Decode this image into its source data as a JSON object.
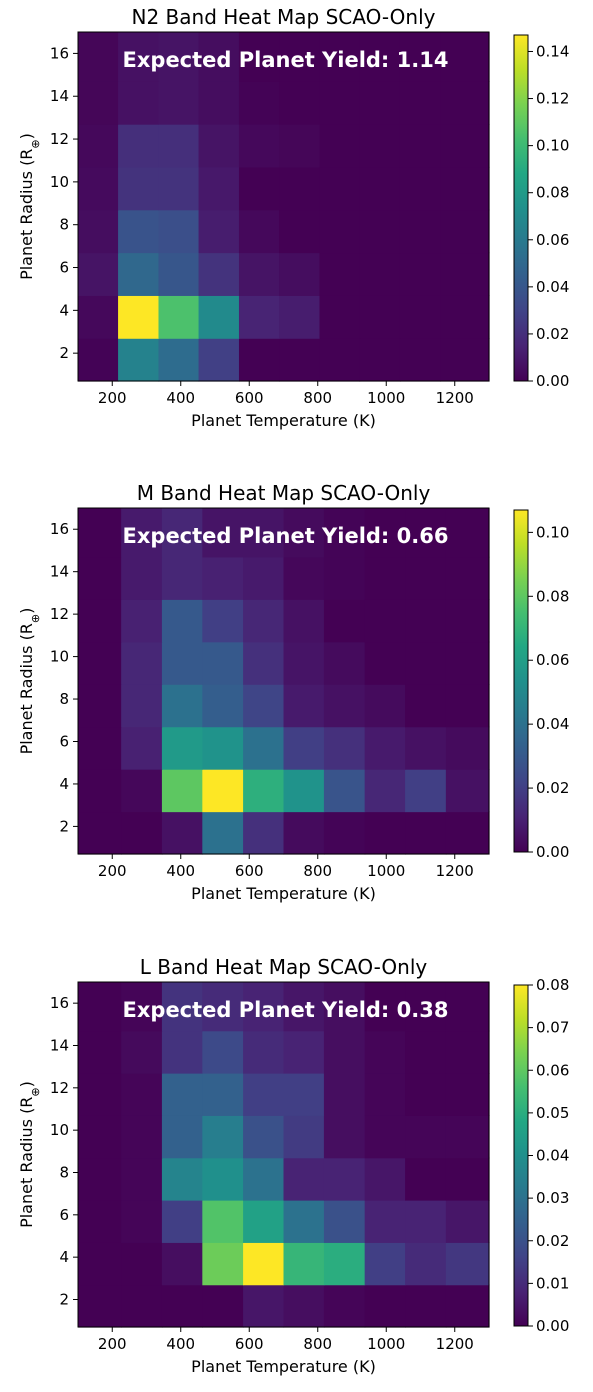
{
  "chart_data": [
    {
      "type": "heatmap",
      "title": "N2 Band Heat Map SCAO-Only",
      "xlabel": "Planet Temperature (K)",
      "ylabel": "Planet Radius (R",
      "ylabel_subscript": "⊕",
      "ylabel_close": ")",
      "annotation": "Expected Planet Yield: 1.14",
      "xlim": [
        100,
        1300
      ],
      "ylim": [
        0.7,
        17
      ],
      "x_ticks": [
        200,
        400,
        600,
        800,
        1000,
        1200
      ],
      "x_tick_labels": [
        "200",
        "400",
        "600",
        "800",
        "1000",
        "1200"
      ],
      "y_ticks": [
        2,
        4,
        6,
        8,
        10,
        12,
        14,
        16
      ],
      "y_tick_labels": [
        "2",
        "4",
        "6",
        "8",
        "10",
        "12",
        "14",
        "16"
      ],
      "colorbar": {
        "vmin": 0,
        "vmax": 0.147,
        "ticks": [
          0,
          0.02,
          0.04,
          0.06,
          0.08,
          0.1,
          0.12,
          0.14
        ],
        "tick_labels": [
          "0.00",
          "0.02",
          "0.04",
          "0.06",
          "0.08",
          "0.10",
          "0.12",
          "0.14"
        ]
      },
      "x_edges": [
        100,
        217,
        335,
        452,
        570,
        687,
        805,
        922,
        1040,
        1157,
        1300
      ],
      "y_edges": [
        0.7,
        2.7,
        4.7,
        6.7,
        8.7,
        10.7,
        12.7,
        14.7,
        17
      ],
      "z": [
        [
          0.001,
          0.065,
          0.052,
          0.028,
          0.0,
          0.0,
          0.0,
          0.0,
          0.0,
          0.0
        ],
        [
          0.003,
          0.147,
          0.105,
          0.07,
          0.015,
          0.012,
          0.0,
          0.0,
          0.0,
          0.0
        ],
        [
          0.008,
          0.05,
          0.04,
          0.022,
          0.008,
          0.005,
          0.0,
          0.0,
          0.0,
          0.0
        ],
        [
          0.005,
          0.038,
          0.036,
          0.012,
          0.003,
          0.0,
          0.0,
          0.0,
          0.0,
          0.0
        ],
        [
          0.004,
          0.022,
          0.022,
          0.01,
          0.0,
          0.0,
          0.0,
          0.0,
          0.0,
          0.0
        ],
        [
          0.003,
          0.02,
          0.02,
          0.008,
          0.003,
          0.002,
          0.0,
          0.0,
          0.0,
          0.0
        ],
        [
          0.002,
          0.007,
          0.008,
          0.005,
          0.001,
          0.0,
          0.0,
          0.0,
          0.0,
          0.0
        ],
        [
          0.002,
          0.007,
          0.008,
          0.005,
          0.0,
          0.0,
          0.0,
          0.0,
          0.0,
          0.0
        ]
      ]
    },
    {
      "type": "heatmap",
      "title": "M Band Heat Map SCAO-Only",
      "xlabel": "Planet Temperature (K)",
      "ylabel": "Planet Radius (R",
      "ylabel_subscript": "⊕",
      "ylabel_close": ")",
      "annotation": "Expected Planet Yield: 0.66",
      "xlim": [
        100,
        1300
      ],
      "ylim": [
        0.7,
        17
      ],
      "x_ticks": [
        200,
        400,
        600,
        800,
        1000,
        1200
      ],
      "x_tick_labels": [
        "200",
        "400",
        "600",
        "800",
        "1000",
        "1200"
      ],
      "y_ticks": [
        2,
        4,
        6,
        8,
        10,
        12,
        14,
        16
      ],
      "y_tick_labels": [
        "2",
        "4",
        "6",
        "8",
        "10",
        "12",
        "14",
        "16"
      ],
      "colorbar": {
        "vmin": 0,
        "vmax": 0.107,
        "ticks": [
          0,
          0.02,
          0.04,
          0.06,
          0.08,
          0.1
        ],
        "tick_labels": [
          "0.00",
          "0.02",
          "0.04",
          "0.06",
          "0.08",
          "0.10"
        ]
      },
      "x_edges": [
        100,
        226,
        345,
        463,
        582,
        700,
        818,
        937,
        1055,
        1174,
        1300
      ],
      "y_edges": [
        0.7,
        2.7,
        4.7,
        6.7,
        8.7,
        10.7,
        12.7,
        14.7,
        17
      ],
      "z": [
        [
          0.0,
          0.0,
          0.005,
          0.04,
          0.015,
          0.003,
          0.001,
          0.0,
          0.0,
          0.0
        ],
        [
          0.0,
          0.002,
          0.08,
          0.107,
          0.068,
          0.055,
          0.028,
          0.012,
          0.02,
          0.005
        ],
        [
          0.0,
          0.01,
          0.058,
          0.055,
          0.04,
          0.02,
          0.015,
          0.008,
          0.005,
          0.003
        ],
        [
          0.0,
          0.012,
          0.04,
          0.032,
          0.022,
          0.008,
          0.005,
          0.003,
          0.0,
          0.0
        ],
        [
          0.0,
          0.012,
          0.03,
          0.03,
          0.015,
          0.006,
          0.003,
          0.0,
          0.0,
          0.0
        ],
        [
          0.0,
          0.01,
          0.03,
          0.02,
          0.012,
          0.005,
          0.0,
          0.0,
          0.0,
          0.0
        ],
        [
          0.0,
          0.008,
          0.012,
          0.01,
          0.008,
          0.002,
          0.001,
          0.0,
          0.0,
          0.0
        ],
        [
          0.0,
          0.008,
          0.012,
          0.006,
          0.006,
          0.003,
          0.001,
          0.0,
          0.0,
          0.0
        ]
      ]
    },
    {
      "type": "heatmap",
      "title": "L Band Heat Map SCAO-Only",
      "xlabel": "Planet Temperature (K)",
      "ylabel": "Planet Radius (R",
      "ylabel_subscript": "⊕",
      "ylabel_close": ")",
      "annotation": "Expected Planet Yield: 0.38",
      "xlim": [
        100,
        1300
      ],
      "ylim": [
        0.7,
        17
      ],
      "x_ticks": [
        200,
        400,
        600,
        800,
        1000,
        1200
      ],
      "x_tick_labels": [
        "200",
        "400",
        "600",
        "800",
        "1000",
        "1200"
      ],
      "y_ticks": [
        2,
        4,
        6,
        8,
        10,
        12,
        14,
        16
      ],
      "y_tick_labels": [
        "2",
        "4",
        "6",
        "8",
        "10",
        "12",
        "14",
        "16"
      ],
      "colorbar": {
        "vmin": 0,
        "vmax": 0.08,
        "ticks": [
          0,
          0.01,
          0.02,
          0.03,
          0.04,
          0.05,
          0.06,
          0.07,
          0.08
        ],
        "tick_labels": [
          "0.00",
          "0.01",
          "0.02",
          "0.03",
          "0.04",
          "0.05",
          "0.06",
          "0.07",
          "0.08"
        ]
      },
      "x_edges": [
        100,
        226,
        345,
        463,
        582,
        700,
        818,
        937,
        1055,
        1174,
        1300
      ],
      "y_edges": [
        0.7,
        2.7,
        4.7,
        6.7,
        8.7,
        10.7,
        12.7,
        14.7,
        17
      ],
      "z": [
        [
          0.0,
          0.0,
          0.0,
          0.0,
          0.005,
          0.003,
          0.001,
          0.0,
          0.0,
          0.0
        ],
        [
          0.0,
          0.0,
          0.003,
          0.062,
          0.08,
          0.053,
          0.05,
          0.015,
          0.01,
          0.013
        ],
        [
          0.0,
          0.001,
          0.015,
          0.058,
          0.046,
          0.03,
          0.02,
          0.008,
          0.008,
          0.005
        ],
        [
          0.0,
          0.001,
          0.036,
          0.04,
          0.03,
          0.008,
          0.008,
          0.005,
          0.0,
          0.0
        ],
        [
          0.0,
          0.001,
          0.025,
          0.034,
          0.02,
          0.014,
          0.003,
          0.001,
          0.001,
          0.001
        ],
        [
          0.0,
          0.001,
          0.025,
          0.025,
          0.015,
          0.015,
          0.003,
          0.001,
          0.0,
          0.0
        ],
        [
          0.0,
          0.002,
          0.012,
          0.018,
          0.01,
          0.008,
          0.003,
          0.001,
          0.0,
          0.0
        ],
        [
          0.0,
          0.001,
          0.012,
          0.01,
          0.008,
          0.005,
          0.003,
          0.0,
          0.0,
          0.0
        ]
      ]
    }
  ]
}
